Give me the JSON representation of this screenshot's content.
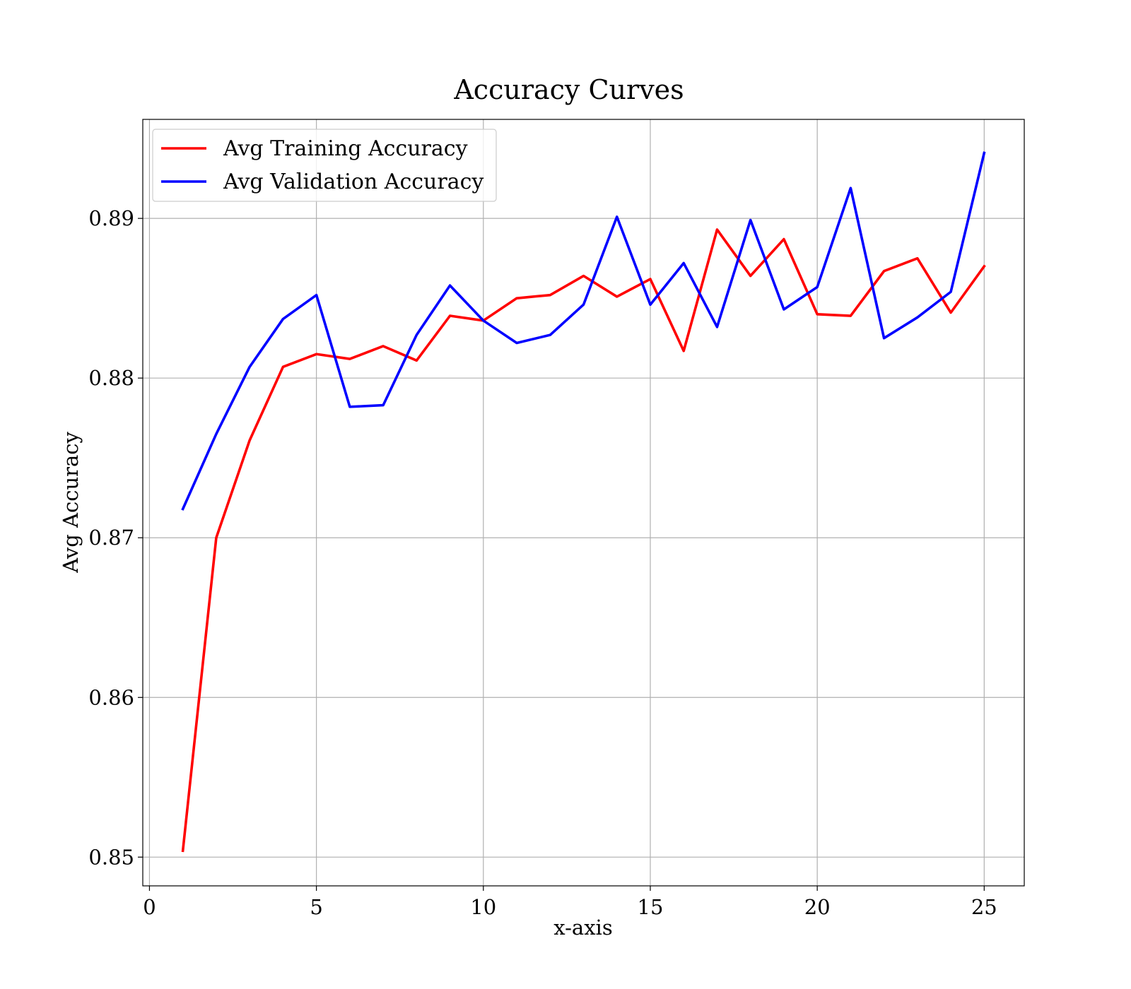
{
  "chart_data": {
    "type": "line",
    "title": "Accuracy Curves",
    "xlabel": "x-axis",
    "ylabel": "Avg Accuracy",
    "xlim": [
      -0.2,
      26.2
    ],
    "ylim": [
      0.8482,
      0.8962
    ],
    "xticks": [
      0,
      5,
      10,
      15,
      20,
      25
    ],
    "xtick_labels": [
      "0",
      "5",
      "10",
      "15",
      "20",
      "25"
    ],
    "yticks": [
      0.85,
      0.86,
      0.87,
      0.88,
      0.89
    ],
    "ytick_labels": [
      "0.85",
      "0.86",
      "0.87",
      "0.88",
      "0.89"
    ],
    "grid": true,
    "legend_position": "top-left",
    "x": [
      1,
      2,
      3,
      4,
      5,
      6,
      7,
      8,
      9,
      10,
      11,
      12,
      13,
      14,
      15,
      16,
      17,
      18,
      19,
      20,
      21,
      22,
      23,
      24,
      25
    ],
    "series": [
      {
        "name": "Avg Training Accuracy",
        "color": "#ff0000",
        "values": [
          0.8504,
          0.87,
          0.8761,
          0.8807,
          0.8815,
          0.8812,
          0.882,
          0.8811,
          0.8839,
          0.8836,
          0.885,
          0.8852,
          0.8864,
          0.8851,
          0.8862,
          0.8817,
          0.8893,
          0.8864,
          0.8887,
          0.884,
          0.8839,
          0.8867,
          0.8875,
          0.8841,
          0.887
        ]
      },
      {
        "name": "Avg Validation Accuracy",
        "color": "#0000ff",
        "values": [
          0.8718,
          0.8765,
          0.8807,
          0.8837,
          0.8852,
          0.8782,
          0.8783,
          0.8827,
          0.8858,
          0.8836,
          0.8822,
          0.8827,
          0.8846,
          0.8901,
          0.8846,
          0.8872,
          0.8832,
          0.8899,
          0.8843,
          0.8857,
          0.8919,
          0.8825,
          0.8838,
          0.8854,
          0.8941
        ]
      }
    ]
  }
}
